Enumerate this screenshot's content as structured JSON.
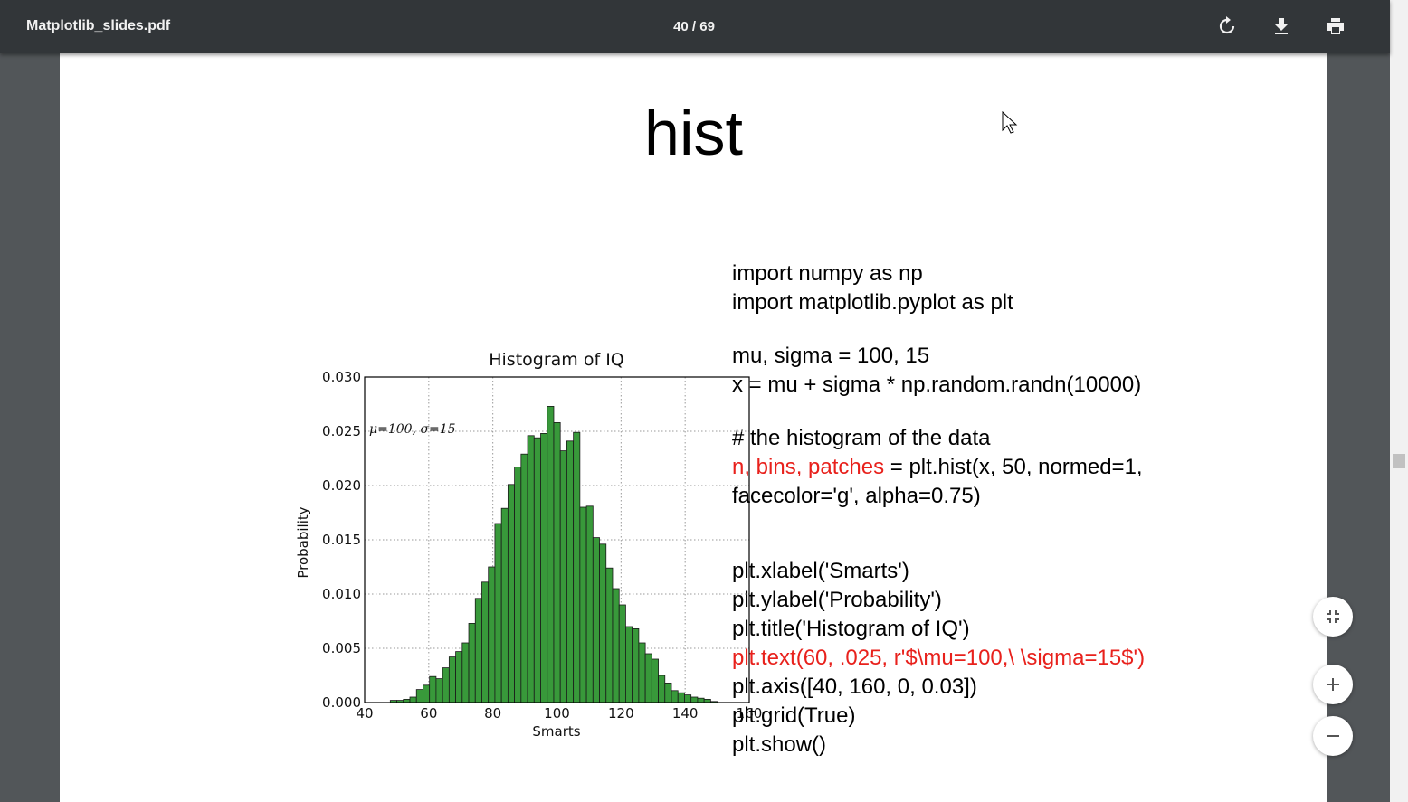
{
  "toolbar": {
    "filename": "Matplotlib_slides.pdf",
    "page_indicator": "40 / 69"
  },
  "slide": {
    "title": "hist",
    "code_blocks": [
      [
        [
          {
            "text": "import numpy as np"
          }
        ],
        [
          {
            "text": "import matplotlib.pyplot as plt"
          }
        ]
      ],
      [
        [
          {
            "text": "mu, sigma = 100, 15"
          }
        ],
        [
          {
            "text": "x = mu + sigma * np.random.randn(10000)"
          }
        ]
      ],
      [
        [
          {
            "text": "# the histogram of the data"
          }
        ],
        [
          {
            "text": "n, bins, patches",
            "color": "#e8211c"
          },
          {
            "text": " = plt.hist(x, 50, normed=1,"
          }
        ],
        [
          {
            "text": "facecolor='g', alpha=0.75)"
          }
        ]
      ],
      [
        [
          {
            "text": "plt.xlabel('Smarts')"
          }
        ],
        [
          {
            "text": "plt.ylabel('Probability')"
          }
        ],
        [
          {
            "text": "plt.title('Histogram of IQ')"
          }
        ],
        [
          {
            "text": "plt.text(60, .025, r'$\\mu=100,\\ \\sigma=15$')",
            "color": "#e8211c"
          }
        ],
        [
          {
            "text": "plt.axis([40, 160, 0, 0.03])"
          }
        ],
        [
          {
            "text": "plt.grid(True)"
          }
        ],
        [
          {
            "text": "plt.show()"
          }
        ]
      ]
    ]
  },
  "chart_data": {
    "type": "histogram",
    "title": "Histogram of IQ",
    "x_label": "Smarts",
    "y_label": "Probability",
    "annotation": "μ=100, σ=15",
    "bins": [
      48,
      50.04,
      52.08,
      54.12,
      56.16,
      58.2,
      60.24,
      62.28,
      64.32,
      66.36,
      68.4,
      70.44,
      72.48,
      74.52,
      76.56,
      78.6,
      80.64,
      82.68,
      84.72,
      86.76,
      88.8,
      90.84,
      92.88,
      94.92,
      96.96,
      99,
      101.04,
      103.08,
      105.12,
      107.16,
      109.2,
      111.24,
      113.28,
      115.32,
      117.36,
      119.4,
      121.44,
      123.48,
      125.52,
      127.56,
      129.6,
      131.64,
      133.68,
      135.72,
      137.76,
      139.8,
      141.84,
      143.88,
      145.92,
      147.96,
      150
    ],
    "values": [
      0.0002,
      0.0002,
      0.0003,
      0.0005,
      0.0012,
      0.0016,
      0.0024,
      0.0022,
      0.0032,
      0.0042,
      0.0047,
      0.0055,
      0.0073,
      0.0096,
      0.0111,
      0.0125,
      0.0165,
      0.0179,
      0.0201,
      0.0217,
      0.0229,
      0.0246,
      0.0244,
      0.0248,
      0.0273,
      0.0258,
      0.0232,
      0.0241,
      0.0249,
      0.018,
      0.0181,
      0.0152,
      0.0146,
      0.0124,
      0.0105,
      0.009,
      0.007,
      0.0068,
      0.0055,
      0.0045,
      0.004,
      0.0025,
      0.0018,
      0.0011,
      0.0009,
      0.0007,
      0.0005,
      0.0004,
      0.0003,
      0.0001
    ],
    "color": "#38993a",
    "xlim": [
      40,
      160
    ],
    "xticks": [
      40,
      60,
      80,
      100,
      120,
      140,
      160
    ],
    "ylim": [
      0,
      0.03
    ],
    "yticks": [
      {
        "value": 0,
        "label": "0.000"
      },
      0.005,
      {
        "value": 0.01,
        "label": "0.010"
      },
      0.015,
      {
        "value": 0.02,
        "label": "0.020"
      },
      0.025,
      {
        "value": 0.03,
        "label": "0.030"
      }
    ],
    "grid": true
  }
}
